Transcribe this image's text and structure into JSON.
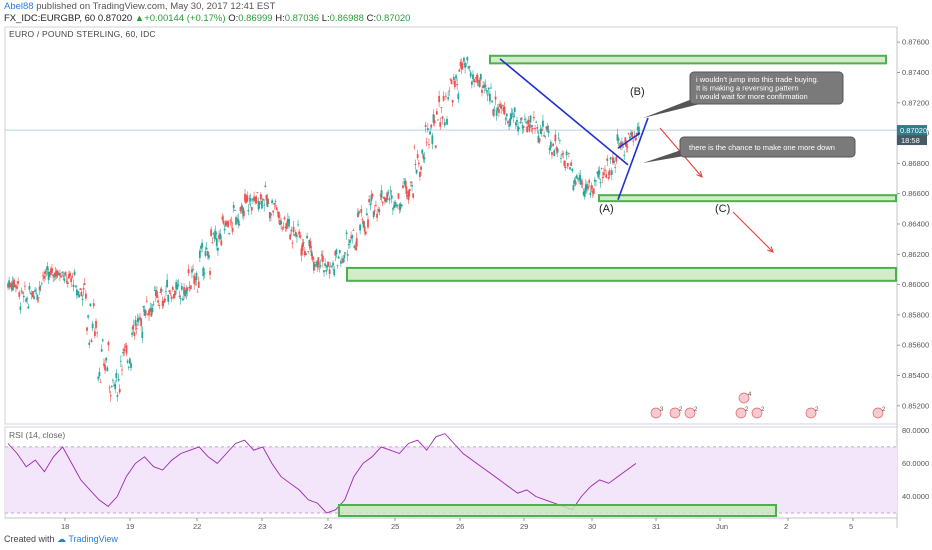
{
  "header": {
    "user": "Abel88",
    "published": " published on TradingView.com, May 30, 2017 12:41 EST",
    "symbol": "FX_IDC:EURGBP, 60",
    "price": "0.87020",
    "arrow": "▲",
    "change": "+0.00144 (+0.17%)",
    "o_label": "O:",
    "o_value": "0.86999",
    "h_label": "H:",
    "h_value": "0.87036",
    "l_label": "L:",
    "l_value": "0.86988",
    "c_label": "C:",
    "c_value": "0.87020"
  },
  "footer": {
    "created_with": "Created with",
    "brand": "TradingView"
  },
  "colors": {
    "up": "#26a69a",
    "down": "#ef5350",
    "zone_fill": "#c8e6b8",
    "zone_stroke": "#4caf50",
    "trend": "#1f2fd1",
    "arrow": "#e53935",
    "rsi_band": "#f3e6fb",
    "rsi_line": "#9c27b0"
  },
  "chart_data": [
    {
      "type": "candlestick",
      "title": "EURO / POUND STERLING, 60, IDC",
      "ylim": [
        0.8508,
        0.877
      ],
      "y_ticks": [
        "0.87600",
        "0.87400",
        "0.87200",
        "0.87000",
        "0.86800",
        "0.86600",
        "0.86400",
        "0.86200",
        "0.86000",
        "0.85800",
        "0.85600",
        "0.85400",
        "0.85200"
      ],
      "x_ticks": [
        "18",
        "19",
        "22",
        "23",
        "24",
        "25",
        "26",
        "29",
        "30",
        "31",
        "Jun",
        "2",
        "5"
      ],
      "last_price": "0.87020",
      "countdown": "18:58",
      "price_path": [
        [
          0.8598,
          0.8603
        ],
        [
          0.8585,
          0.8597
        ],
        [
          0.859,
          0.8606
        ],
        [
          0.8602,
          0.861
        ],
        [
          0.8606,
          0.8609
        ],
        [
          0.86,
          0.8607
        ],
        [
          0.859,
          0.8601
        ],
        [
          0.856,
          0.859
        ],
        [
          0.8535,
          0.8562
        ],
        [
          0.8528,
          0.854
        ],
        [
          0.8545,
          0.856
        ],
        [
          0.8565,
          0.858
        ],
        [
          0.858,
          0.859
        ],
        [
          0.8585,
          0.8597
        ],
        [
          0.859,
          0.8602
        ],
        [
          0.8588,
          0.86
        ],
        [
          0.8596,
          0.861
        ],
        [
          0.8608,
          0.8625
        ],
        [
          0.8622,
          0.8636
        ],
        [
          0.8634,
          0.8644
        ],
        [
          0.864,
          0.8652
        ],
        [
          0.8648,
          0.866
        ],
        [
          0.8652,
          0.8663
        ],
        [
          0.8645,
          0.8658
        ],
        [
          0.8636,
          0.8648
        ],
        [
          0.8628,
          0.864
        ],
        [
          0.862,
          0.863
        ],
        [
          0.8612,
          0.8622
        ],
        [
          0.8606,
          0.8616
        ],
        [
          0.8612,
          0.8622
        ],
        [
          0.862,
          0.8635
        ],
        [
          0.8634,
          0.8648
        ],
        [
          0.8646,
          0.8658
        ],
        [
          0.8654,
          0.8662
        ],
        [
          0.865,
          0.866
        ],
        [
          0.8658,
          0.8672
        ],
        [
          0.867,
          0.869
        ],
        [
          0.8688,
          0.871
        ],
        [
          0.8705,
          0.8726
        ],
        [
          0.872,
          0.874
        ],
        [
          0.8738,
          0.8748
        ],
        [
          0.8728,
          0.8742
        ],
        [
          0.872,
          0.8732
        ],
        [
          0.8712,
          0.8724
        ],
        [
          0.8706,
          0.8716
        ],
        [
          0.87,
          0.8712
        ],
        [
          0.8702,
          0.871
        ],
        [
          0.8696,
          0.8706
        ],
        [
          0.8686,
          0.8698
        ],
        [
          0.8676,
          0.869
        ],
        [
          0.8664,
          0.8678
        ],
        [
          0.8658,
          0.8668
        ],
        [
          0.8664,
          0.8676
        ],
        [
          0.8672,
          0.8688
        ],
        [
          0.8686,
          0.87
        ],
        [
          0.8694,
          0.8704
        ]
      ],
      "zones": [
        {
          "from_price": 0.8746,
          "to_price": 0.8751
        },
        {
          "from_price": 0.8656,
          "to_price": 0.8659
        },
        {
          "from_price": 0.86025,
          "to_price": 0.8611
        }
      ],
      "wave_labels": {
        "a": "(A)",
        "b": "(B)",
        "c": "(C)"
      },
      "annotations": [
        {
          "lines": [
            "i wouldn't jump into this trade buying.",
            "It is making a reversing pattern",
            "i would wait for more confirmation"
          ]
        },
        {
          "lines": [
            "there is the chance to make one more down"
          ]
        }
      ],
      "events": [
        "3",
        "2",
        "2",
        "2",
        "2",
        "2",
        "2",
        "4"
      ]
    },
    {
      "type": "line",
      "title": "RSI (14, close)",
      "ylim": [
        27,
        82
      ],
      "y_ticks": [
        "80.0000",
        "60.0000",
        "40.0000"
      ],
      "band": [
        30,
        70
      ],
      "values": [
        72,
        66,
        58,
        62,
        55,
        64,
        70,
        60,
        50,
        44,
        38,
        34,
        40,
        52,
        60,
        64,
        58,
        56,
        62,
        66,
        68,
        70,
        64,
        60,
        66,
        72,
        74,
        68,
        70,
        60,
        52,
        48,
        44,
        38,
        36,
        30,
        32,
        38,
        52,
        60,
        64,
        70,
        68,
        66,
        72,
        74,
        68,
        76,
        78,
        72,
        66,
        62,
        58,
        54,
        50,
        46,
        42,
        44,
        40,
        38,
        36,
        34,
        32,
        40,
        46,
        50,
        48,
        52,
        56,
        60
      ]
    }
  ]
}
